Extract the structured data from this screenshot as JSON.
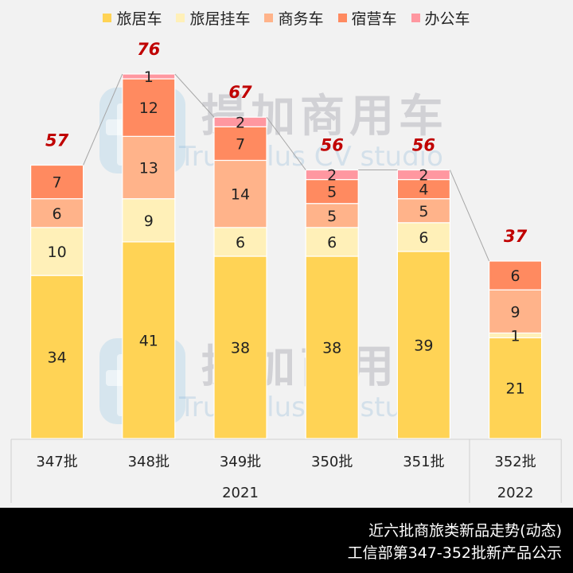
{
  "chart_data": {
    "type": "bar",
    "stacked": true,
    "categories": [
      "347批",
      "348批",
      "349批",
      "350批",
      "351批",
      "352批"
    ],
    "groups": [
      {
        "label": "2021",
        "span": 5
      },
      {
        "label": "2022",
        "span": 1
      }
    ],
    "series": [
      {
        "name": "旅居车",
        "color": "#ffd355",
        "values": [
          34,
          41,
          38,
          38,
          39,
          21
        ]
      },
      {
        "name": "旅居挂车",
        "color": "#fff0b8",
        "values": [
          10,
          9,
          6,
          6,
          6,
          1
        ]
      },
      {
        "name": "商务车",
        "color": "#ffb38a",
        "values": [
          6,
          13,
          14,
          5,
          5,
          9
        ]
      },
      {
        "name": "宿营车",
        "color": "#ff8a60",
        "values": [
          7,
          12,
          7,
          5,
          4,
          6
        ]
      },
      {
        "name": "办公车",
        "color": "#ff97a0",
        "values": [
          0,
          1,
          2,
          2,
          2,
          0
        ]
      }
    ],
    "totals": [
      57,
      76,
      67,
      56,
      56,
      37
    ],
    "total_label_color": "#c00000",
    "ylim": [
      0,
      76
    ],
    "legend": "top",
    "grid": false,
    "title": "近六批商旅类新品走势(动态)",
    "subtitle": "工信部第347-352批新产品公示"
  },
  "watermark": {
    "brand": "提加商用车",
    "sub": "TruckPlus CV studio"
  }
}
